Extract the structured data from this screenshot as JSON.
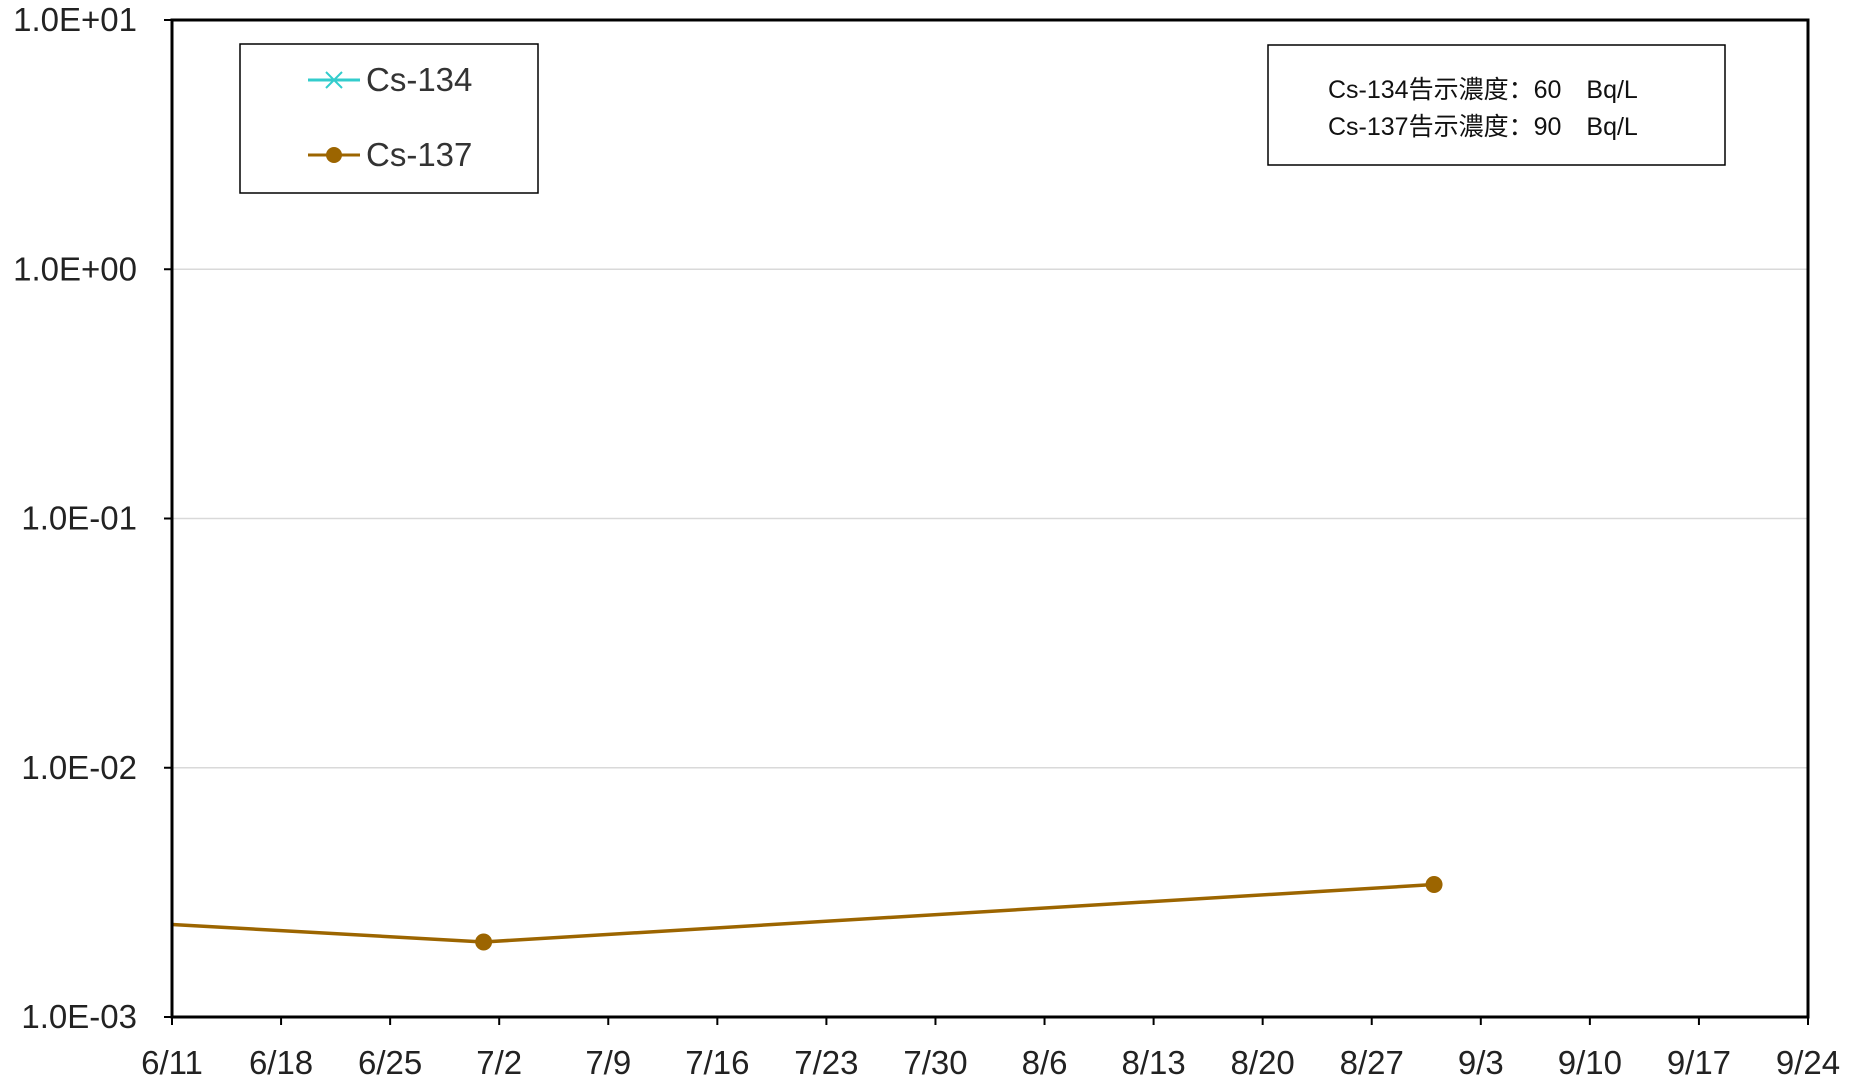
{
  "chart_data": {
    "type": "line",
    "y_scale": "log",
    "ylim": [
      0.001,
      10
    ],
    "y_ticks": [
      {
        "value": 10,
        "label": "1.0E+01"
      },
      {
        "value": 1,
        "label": "1.0E+00"
      },
      {
        "value": 0.1,
        "label": "1.0E-01"
      },
      {
        "value": 0.01,
        "label": "1.0E-02"
      },
      {
        "value": 0.001,
        "label": "1.0E-03"
      }
    ],
    "xlim": [
      "06-11",
      "09-24"
    ],
    "x_ticks": [
      {
        "value": "06-11",
        "label": "6/11"
      },
      {
        "value": "06-18",
        "label": "6/18"
      },
      {
        "value": "06-25",
        "label": "6/25"
      },
      {
        "value": "07-02",
        "label": "7/2"
      },
      {
        "value": "07-09",
        "label": "7/9"
      },
      {
        "value": "07-16",
        "label": "7/16"
      },
      {
        "value": "07-23",
        "label": "7/23"
      },
      {
        "value": "07-30",
        "label": "7/30"
      },
      {
        "value": "08-06",
        "label": "8/6"
      },
      {
        "value": "08-13",
        "label": "8/13"
      },
      {
        "value": "08-20",
        "label": "8/20"
      },
      {
        "value": "08-27",
        "label": "8/27"
      },
      {
        "value": "09-03",
        "label": "9/3"
      },
      {
        "value": "09-10",
        "label": "9/10"
      },
      {
        "value": "09-17",
        "label": "9/17"
      },
      {
        "value": "09-24",
        "label": "9/24"
      }
    ],
    "grid": true,
    "legend_position": "top-left",
    "series": [
      {
        "name": "Cs-134",
        "color": "#33CCCC",
        "marker": "x",
        "points": []
      },
      {
        "name": "Cs-137",
        "color": "#9C6500",
        "marker": "circle",
        "points": [
          {
            "x": "07-01",
            "y": 0.002
          },
          {
            "x": "08-31",
            "y": 0.0034
          }
        ],
        "line_enters_from_left_at": 0.00235
      }
    ],
    "annotation": {
      "lines": [
        "Cs-134告示濃度：60　Bq/L",
        "Cs-137告示濃度：90　Bq/L"
      ]
    }
  }
}
